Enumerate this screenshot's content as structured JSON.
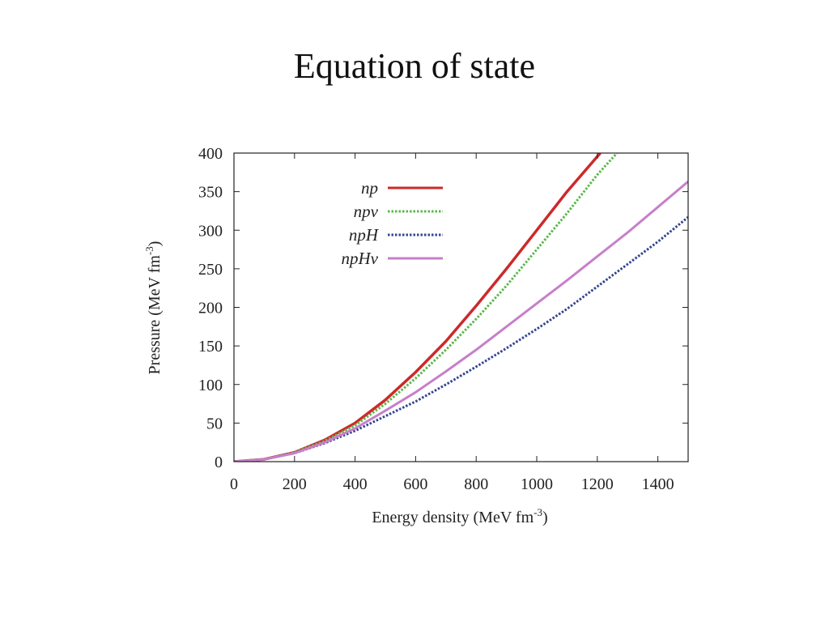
{
  "slide": {
    "title": "Equation of state"
  },
  "chart_data": {
    "type": "line",
    "title": "",
    "xlabel": "Energy density (MeV fm",
    "xlabel_sup": "-3",
    "xlabel_close": ")",
    "ylabel": "Pressure (MeV fm",
    "ylabel_sup": "-3",
    "ylabel_close": ")",
    "xlim": [
      0,
      1500
    ],
    "ylim": [
      0,
      400
    ],
    "xticks": [
      0,
      200,
      400,
      600,
      800,
      1000,
      1200,
      1400
    ],
    "yticks": [
      0,
      50,
      100,
      150,
      200,
      250,
      300,
      350,
      400
    ],
    "grid": false,
    "legend_position": "top-center",
    "series": [
      {
        "name": "np",
        "color": "#cc2a2a",
        "style": "solid",
        "x": [
          0,
          100,
          200,
          300,
          400,
          500,
          600,
          700,
          800,
          900,
          1000,
          1100,
          1210
        ],
        "y": [
          0,
          3,
          12,
          28,
          50,
          80,
          116,
          156,
          202,
          250,
          300,
          350,
          400
        ]
      },
      {
        "name": "npν",
        "color": "#5ab84a",
        "style": "dotted",
        "x": [
          0,
          100,
          200,
          300,
          400,
          500,
          600,
          700,
          800,
          900,
          1000,
          1100,
          1200,
          1265
        ],
        "y": [
          0,
          3,
          12,
          27,
          47,
          75,
          108,
          145,
          185,
          228,
          275,
          322,
          372,
          400
        ]
      },
      {
        "name": "npH",
        "color": "#33458f",
        "style": "dotted",
        "x": [
          0,
          100,
          200,
          300,
          400,
          500,
          600,
          700,
          800,
          900,
          1000,
          1100,
          1200,
          1300,
          1400,
          1500
        ],
        "y": [
          0,
          3,
          11,
          24,
          40,
          59,
          78,
          100,
          123,
          147,
          172,
          198,
          227,
          256,
          285,
          317
        ]
      },
      {
        "name": "npHν",
        "color": "#c77fc9",
        "style": "solid",
        "x": [
          0,
          100,
          200,
          300,
          400,
          500,
          600,
          700,
          800,
          900,
          1000,
          1100,
          1200,
          1300,
          1400,
          1500
        ],
        "y": [
          0,
          3,
          11,
          25,
          43,
          66,
          90,
          117,
          145,
          175,
          205,
          235,
          266,
          297,
          330,
          363
        ]
      }
    ]
  }
}
